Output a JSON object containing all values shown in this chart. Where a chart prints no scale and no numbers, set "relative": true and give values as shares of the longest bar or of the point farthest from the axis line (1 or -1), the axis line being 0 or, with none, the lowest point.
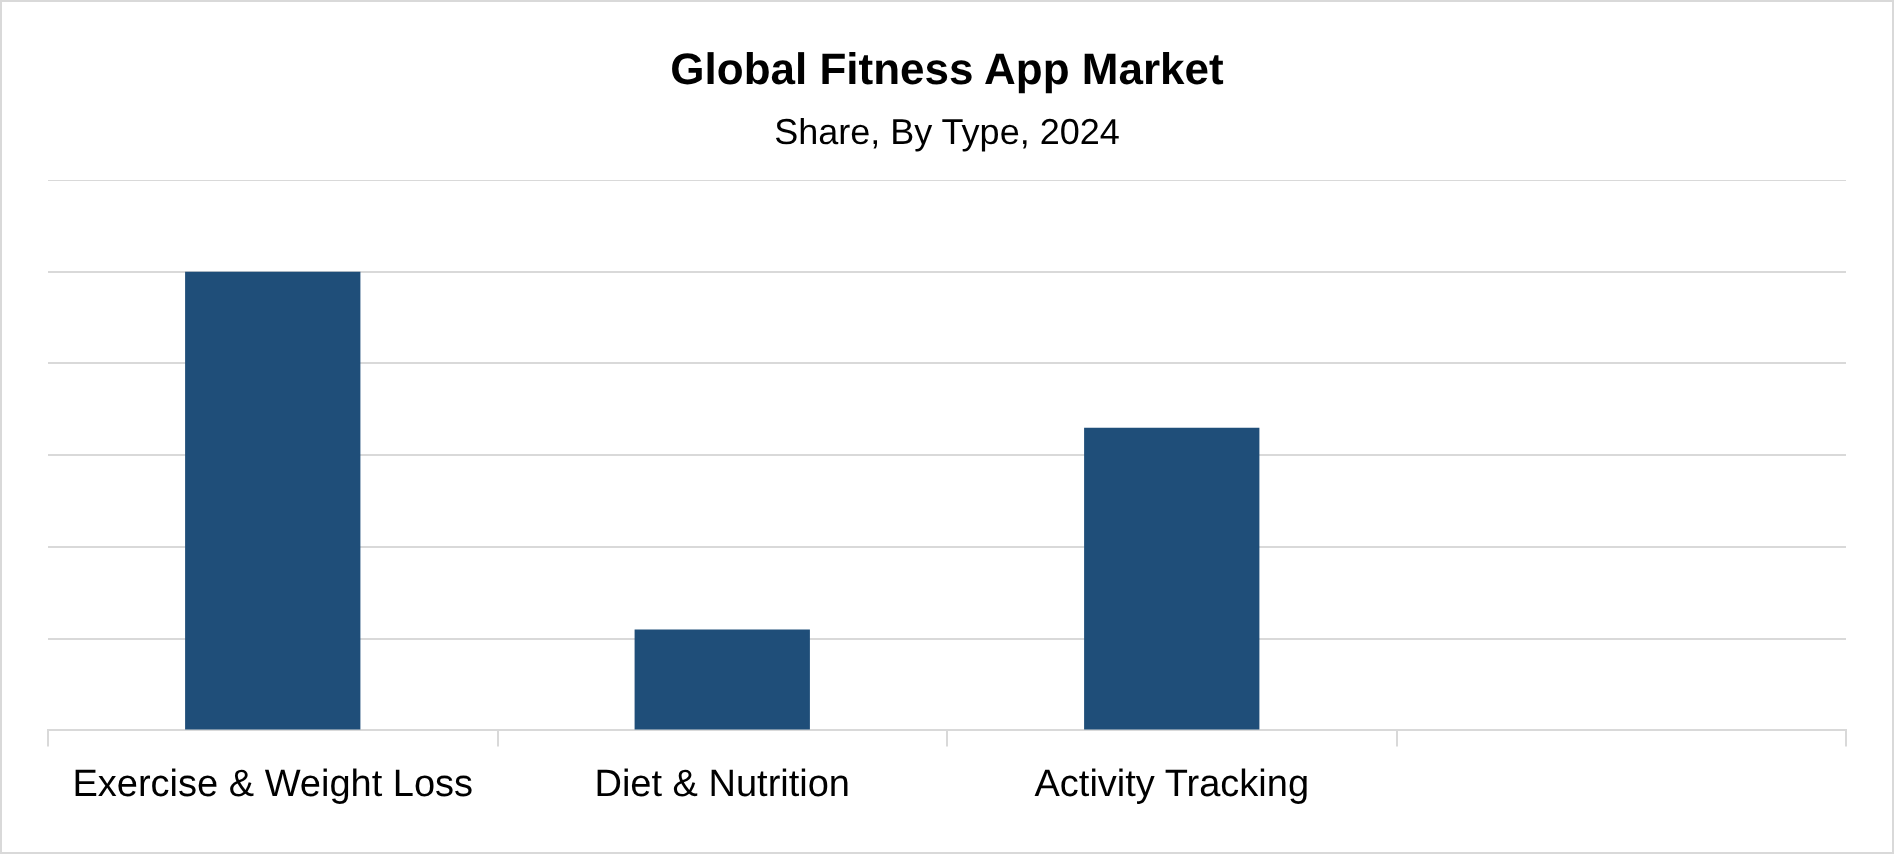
{
  "chart_data": {
    "type": "bar",
    "title": "Global Fitness App Market",
    "subtitle": "Share, By Type, 2024",
    "categories": [
      "Exercise & Weight Loss",
      "Diet & Nutrition",
      "Activity Tracking",
      null
    ],
    "values": [
      1,
      0.22,
      0.66,
      null
    ],
    "color": "#1f4e79",
    "relative": true,
    "grid": "y",
    "legend": false
  }
}
